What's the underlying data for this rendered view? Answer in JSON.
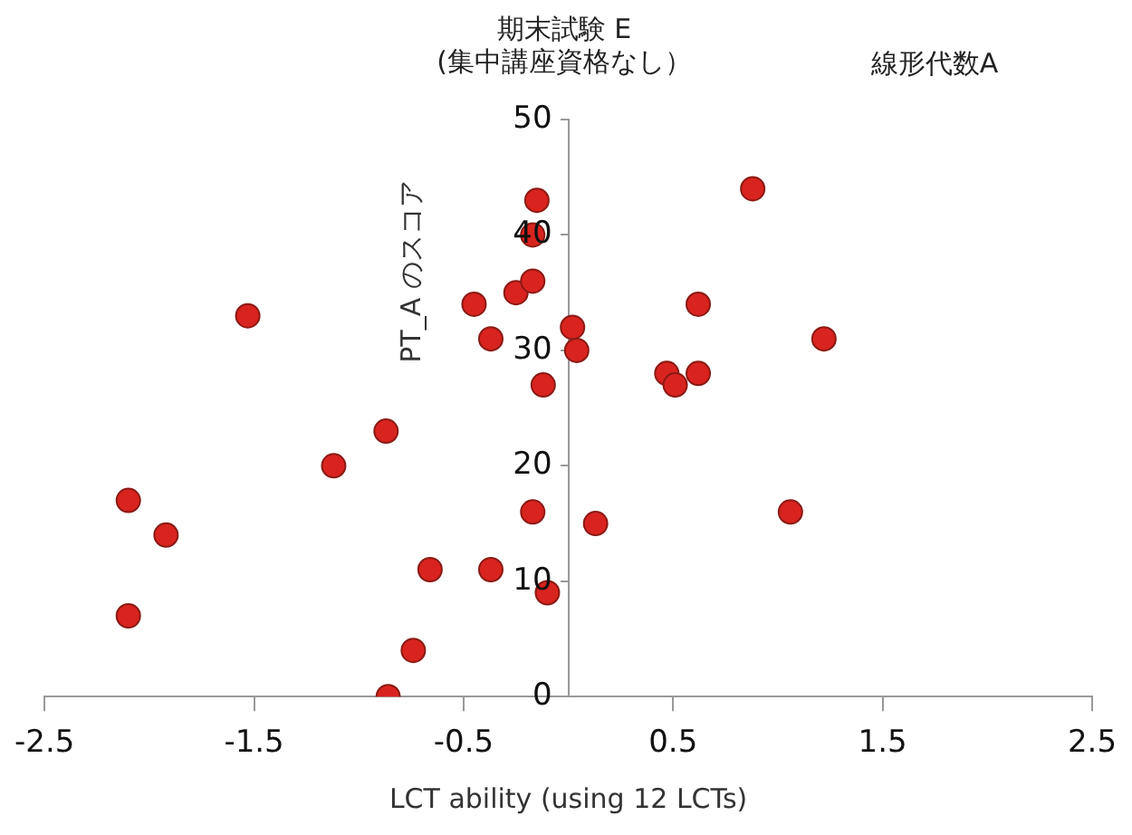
{
  "chart_data": {
    "type": "scatter",
    "title": "期末試験 E\n(集中講座資格なし）",
    "annotations": [
      "線形代数A"
    ],
    "xlabel": "LCT ability (using 12 LCTs)",
    "ylabel": "PT_A のスコア",
    "x": [
      -2.1,
      -1.92,
      -2.1,
      -1.53,
      -1.12,
      -0.87,
      -0.86,
      -0.74,
      -0.66,
      -0.45,
      -0.37,
      -0.37,
      -0.25,
      -0.17,
      -0.17,
      -0.15,
      -0.12,
      -0.17,
      -0.1,
      0.13,
      0.02,
      0.04,
      0.88,
      0.62,
      1.22,
      0.47,
      0.51,
      0.62,
      1.06
    ],
    "series": [
      {
        "color": "#d9231f",
        "values": [
          17,
          14,
          7,
          33,
          20,
          23,
          0,
          4,
          11,
          34,
          31,
          11,
          35,
          36,
          40,
          43,
          27,
          16,
          9,
          15,
          32,
          30,
          44,
          34,
          31,
          28,
          27,
          28,
          16
        ]
      }
    ],
    "xlim": [
      -2.5,
      2.5
    ],
    "xticks": [
      -2.5,
      -1.5,
      -0.5,
      0.5,
      1.5,
      2.5
    ],
    "ylim": [
      0,
      50
    ],
    "yticks": [
      0,
      10,
      20,
      30,
      40,
      50
    ],
    "grid": false,
    "legend": false,
    "marker": "circle"
  }
}
